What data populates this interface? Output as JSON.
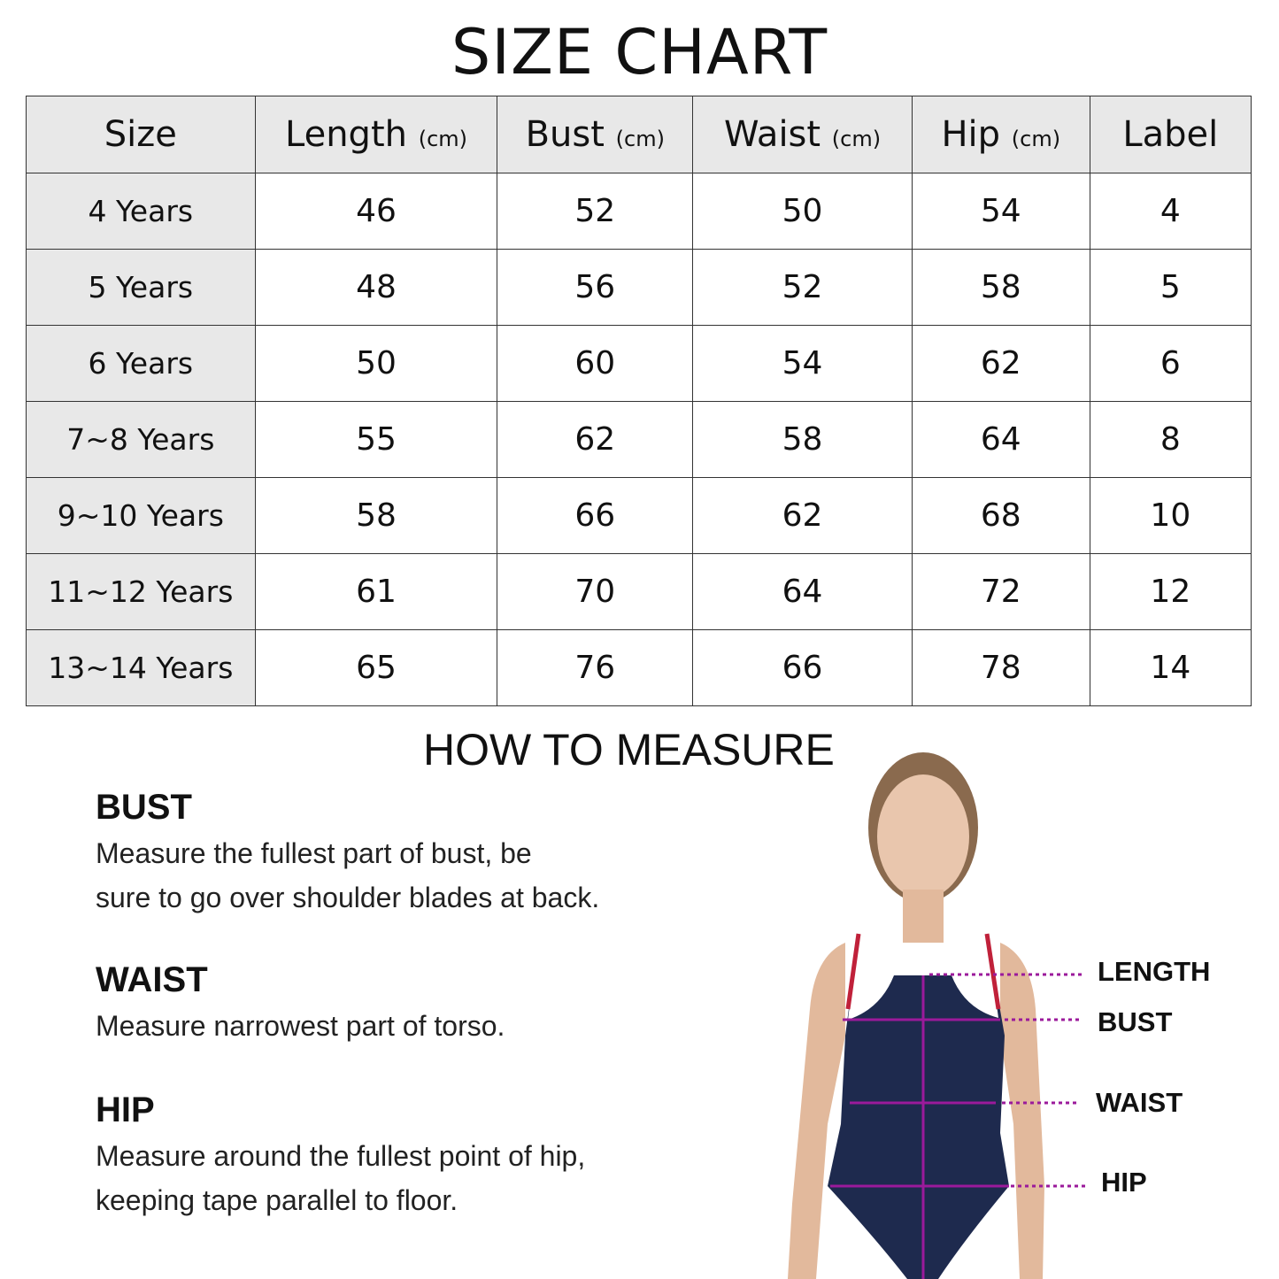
{
  "title": "SIZE CHART",
  "table": {
    "headers": [
      {
        "label": "Size",
        "unit": ""
      },
      {
        "label": "Length",
        "unit": "(cm)"
      },
      {
        "label": "Bust",
        "unit": "(cm)"
      },
      {
        "label": "Waist",
        "unit": "(cm)"
      },
      {
        "label": "Hip",
        "unit": "(cm)"
      },
      {
        "label": "Label",
        "unit": ""
      }
    ],
    "rows": [
      [
        "4 Years",
        "46",
        "52",
        "50",
        "54",
        "4"
      ],
      [
        "5 Years",
        "48",
        "56",
        "52",
        "58",
        "5"
      ],
      [
        "6 Years",
        "50",
        "60",
        "54",
        "62",
        "6"
      ],
      [
        "7~8 Years",
        "55",
        "62",
        "58",
        "64",
        "8"
      ],
      [
        "9~10 Years",
        "58",
        "66",
        "62",
        "68",
        "10"
      ],
      [
        "11~12 Years",
        "61",
        "70",
        "64",
        "72",
        "12"
      ],
      [
        "13~14 Years",
        "65",
        "76",
        "66",
        "78",
        "14"
      ]
    ]
  },
  "how_to": {
    "title": "HOW TO MEASURE",
    "sections": [
      {
        "heading": "BUST",
        "lines": [
          "Measure the fullest part of bust, be",
          "sure to go over shoulder blades at back."
        ]
      },
      {
        "heading": "WAIST",
        "lines": [
          "Measure narrowest part of torso."
        ]
      },
      {
        "heading": "HIP",
        "lines": [
          "Measure around the fullest point of hip,",
          "keeping tape parallel to floor."
        ]
      }
    ],
    "figure_labels": [
      "LENGTH",
      "BUST",
      "WAIST",
      "HIP"
    ]
  },
  "colors": {
    "header_bg": "#e8e8e8",
    "swimsuit": "#1e2a4e",
    "measure_line": "#9b1a9b",
    "strap": "#c0213a"
  }
}
